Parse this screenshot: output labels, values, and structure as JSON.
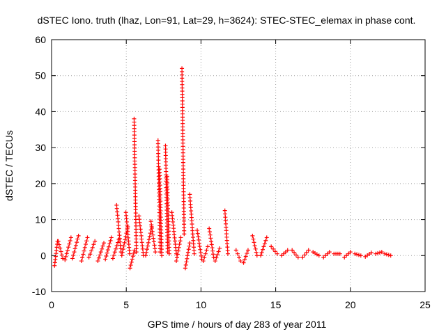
{
  "chart_data": {
    "type": "scatter",
    "title": "dSTEC Iono. truth (lhaz, Lon=91, Lat=29, h=3624): STEC-STEC_elemax in phase cont.",
    "xlabel": "GPS time / hours of day 283 of year 2011",
    "ylabel": "dSTEC  / TECUs",
    "xlim": [
      0,
      25
    ],
    "ylim": [
      -10,
      60
    ],
    "x_ticks": [
      0,
      5,
      10,
      15,
      20,
      25
    ],
    "x_tick_labels": [
      "0",
      "5",
      "10",
      "15",
      "20",
      "25"
    ],
    "y_ticks": [
      -10,
      0,
      10,
      20,
      30,
      40,
      50,
      60
    ],
    "y_tick_labels": [
      "-10",
      "0",
      "10",
      "20",
      "30",
      "40",
      "50",
      "60"
    ],
    "grid": true,
    "legend": "none",
    "marker": "+",
    "series_color": "#ff0000",
    "arcs": [
      {
        "t": 0.3,
        "h": -2.8,
        "l": 4.0,
        "d": 0.2
      },
      {
        "t": 0.6,
        "h": 4.0,
        "l": -0.8,
        "d": 0.3
      },
      {
        "t": 1.1,
        "h": -1.2,
        "l": 5.0,
        "d": 0.4
      },
      {
        "t": 1.6,
        "h": -0.8,
        "l": 5.5,
        "d": 0.4
      },
      {
        "t": 2.2,
        "h": -1.5,
        "l": 5.0,
        "d": 0.4
      },
      {
        "t": 2.7,
        "h": -0.5,
        "l": 4.0,
        "d": 0.4
      },
      {
        "t": 3.3,
        "h": -1.5,
        "l": 3.5,
        "d": 0.4
      },
      {
        "t": 3.8,
        "h": -1.0,
        "l": 5.0,
        "d": 0.4
      },
      {
        "t": 4.3,
        "h": -0.8,
        "l": 4.5,
        "d": 0.4
      },
      {
        "t": 4.5,
        "h": 14.0,
        "l": 1.0,
        "d": 0.3
      },
      {
        "t": 4.9,
        "h": 0.0,
        "l": 8.0,
        "d": 0.4
      },
      {
        "t": 5.1,
        "h": 12.0,
        "l": 0.5,
        "d": 0.25
      },
      {
        "t": 5.4,
        "h": -3.5,
        "l": 1.5,
        "d": 0.3
      },
      {
        "t": 5.6,
        "h": 38.0,
        "l": 1.0,
        "d": 0.15
      },
      {
        "t": 6.0,
        "h": 11.0,
        "l": 0.0,
        "d": 0.3
      },
      {
        "t": 6.5,
        "h": 0.0,
        "l": 8.0,
        "d": 0.4
      },
      {
        "t": 6.8,
        "h": 9.5,
        "l": 1.0,
        "d": 0.3
      },
      {
        "t": 7.2,
        "h": 32.0,
        "l": 1.0,
        "d": 0.15
      },
      {
        "t": 7.3,
        "h": 24.0,
        "l": 0.0,
        "d": 0.15
      },
      {
        "t": 7.7,
        "h": 30.5,
        "l": 1.0,
        "d": 0.15
      },
      {
        "t": 7.8,
        "h": 22.0,
        "l": 0.5,
        "d": 0.15
      },
      {
        "t": 8.2,
        "h": 12.0,
        "l": 0.5,
        "d": 0.3
      },
      {
        "t": 8.5,
        "h": -1.5,
        "l": 5.0,
        "d": 0.3
      },
      {
        "t": 8.8,
        "h": 52.0,
        "l": 6.0,
        "d": 0.15
      },
      {
        "t": 9.1,
        "h": -3.5,
        "l": 3.5,
        "d": 0.3
      },
      {
        "t": 9.4,
        "h": 17.0,
        "l": 0.5,
        "d": 0.3
      },
      {
        "t": 9.9,
        "h": 7.0,
        "l": -1.0,
        "d": 0.3
      },
      {
        "t": 10.3,
        "h": -1.5,
        "l": 2.5,
        "d": 0.3
      },
      {
        "t": 10.7,
        "h": 7.5,
        "l": -0.5,
        "d": 0.3
      },
      {
        "t": 11.1,
        "h": -1.5,
        "l": 2.0,
        "d": 0.3
      },
      {
        "t": 11.7,
        "h": 12.5,
        "l": 0.5,
        "d": 0.2
      },
      {
        "t": 12.5,
        "h": 1.5,
        "l": -1.5,
        "d": 0.3
      },
      {
        "t": 13.0,
        "h": -2.0,
        "l": 1.5,
        "d": 0.3
      },
      {
        "t": 13.6,
        "h": 5.5,
        "l": 0.0,
        "d": 0.3
      },
      {
        "t": 14.2,
        "h": 0.0,
        "l": 5.0,
        "d": 0.4
      },
      {
        "t": 14.9,
        "h": 2.5,
        "l": 0.5,
        "d": 0.4
      },
      {
        "t": 15.6,
        "h": 0.0,
        "l": 1.5,
        "d": 0.4
      },
      {
        "t": 16.3,
        "h": 1.5,
        "l": -0.5,
        "d": 0.4
      },
      {
        "t": 17.0,
        "h": -0.5,
        "l": 1.5,
        "d": 0.4
      },
      {
        "t": 17.7,
        "h": 1.0,
        "l": 0.0,
        "d": 0.4
      },
      {
        "t": 18.4,
        "h": -0.5,
        "l": 1.0,
        "d": 0.4
      },
      {
        "t": 19.1,
        "h": 0.5,
        "l": 0.5,
        "d": 0.4
      },
      {
        "t": 19.8,
        "h": -0.5,
        "l": 1.0,
        "d": 0.4
      },
      {
        "t": 20.5,
        "h": 0.5,
        "l": 0.0,
        "d": 0.4
      },
      {
        "t": 21.2,
        "h": -0.3,
        "l": 0.8,
        "d": 0.4
      },
      {
        "t": 21.9,
        "h": 0.5,
        "l": 1.0,
        "d": 0.4
      },
      {
        "t": 22.5,
        "h": 0.5,
        "l": 0.0,
        "d": 0.4
      }
    ]
  }
}
